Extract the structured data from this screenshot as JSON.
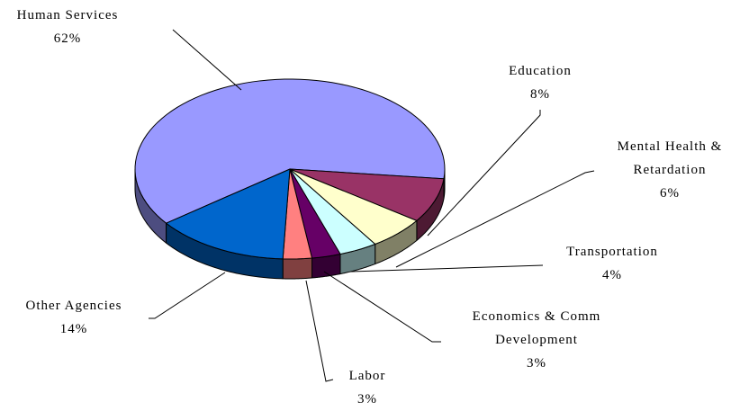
{
  "chart_data": {
    "type": "pie",
    "categories": [
      "Human Services",
      "Education",
      "Mental Health & Retardation",
      "Transportation",
      "Economics & Comm Development",
      "Labor",
      "Other Agencies"
    ],
    "values": [
      62,
      8,
      6,
      4,
      3,
      3,
      14
    ],
    "value_labels": [
      "62%",
      "8%",
      "6%",
      "4%",
      "3%",
      "3%",
      "14%"
    ],
    "colors": [
      "#9999ff",
      "#993366",
      "#ffffcc",
      "#ccffff",
      "#660066",
      "#ff8080",
      "#0066cc"
    ]
  }
}
